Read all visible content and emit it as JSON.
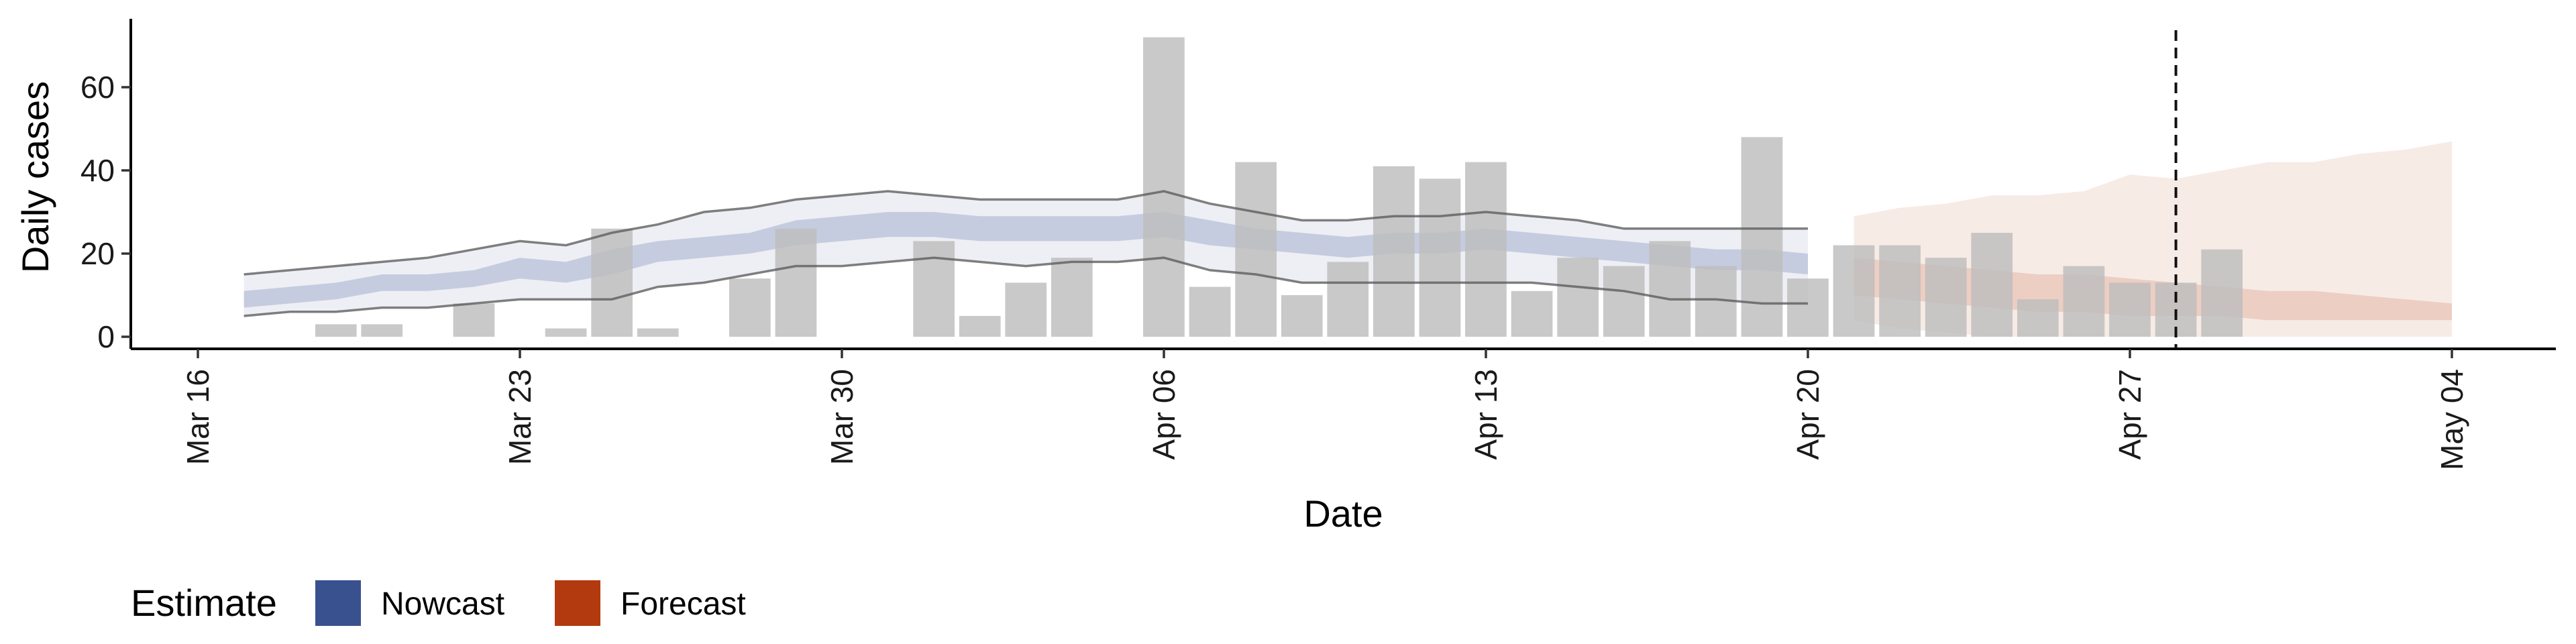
{
  "chart_data": {
    "type": "bar",
    "xlabel": "Date",
    "ylabel": "Daily cases",
    "ylim": [
      -3,
      75
    ],
    "xlim": [
      "2020-03-16",
      "2020-05-04"
    ],
    "y_ticks": [
      0,
      20,
      40,
      60
    ],
    "x_ticks": [
      "2020-03-16",
      "2020-03-23",
      "2020-03-30",
      "2020-04-06",
      "2020-04-13",
      "2020-04-20",
      "2020-04-27",
      "2020-05-04"
    ],
    "x_tick_labels": [
      "Mar 16",
      "Mar 23",
      "Mar 30",
      "Apr 06",
      "Apr 13",
      "Apr 20",
      "Apr 27",
      "May 04"
    ],
    "grid": false,
    "reference_line_date": "2020-04-28",
    "bar_color": "#bdbdbd",
    "bars": {
      "dates": [
        "2020-03-19",
        "2020-03-20",
        "2020-03-22",
        "2020-03-24",
        "2020-03-25",
        "2020-03-26",
        "2020-03-28",
        "2020-03-29",
        "2020-04-01",
        "2020-04-02",
        "2020-04-03",
        "2020-04-04",
        "2020-04-06",
        "2020-04-07",
        "2020-04-08",
        "2020-04-09",
        "2020-04-10",
        "2020-04-11",
        "2020-04-12",
        "2020-04-13",
        "2020-04-14",
        "2020-04-15",
        "2020-04-16",
        "2020-04-17",
        "2020-04-18",
        "2020-04-19",
        "2020-04-20",
        "2020-04-21",
        "2020-04-22",
        "2020-04-23",
        "2020-04-24",
        "2020-04-25",
        "2020-04-26",
        "2020-04-27",
        "2020-04-28",
        "2020-04-29"
      ],
      "values": [
        3,
        3,
        8,
        2,
        26,
        2,
        14,
        26,
        23,
        5,
        13,
        19,
        72,
        12,
        42,
        10,
        18,
        41,
        38,
        42,
        11,
        19,
        17,
        23,
        17,
        48,
        14,
        22,
        22,
        19,
        25,
        9,
        17,
        13,
        13,
        21
      ]
    },
    "nowcast": {
      "name": "Nowcast",
      "color": "#3a5190",
      "dates": [
        "2020-03-17",
        "2020-03-18",
        "2020-03-19",
        "2020-03-20",
        "2020-03-21",
        "2020-03-22",
        "2020-03-23",
        "2020-03-24",
        "2020-03-25",
        "2020-03-26",
        "2020-03-27",
        "2020-03-28",
        "2020-03-29",
        "2020-03-30",
        "2020-03-31",
        "2020-04-01",
        "2020-04-02",
        "2020-04-03",
        "2020-04-04",
        "2020-04-05",
        "2020-04-06",
        "2020-04-07",
        "2020-04-08",
        "2020-04-09",
        "2020-04-10",
        "2020-04-11",
        "2020-04-12",
        "2020-04-13",
        "2020-04-14",
        "2020-04-15",
        "2020-04-16",
        "2020-04-17",
        "2020-04-18",
        "2020-04-19",
        "2020-04-20"
      ],
      "outer_lower": [
        5,
        6,
        6,
        7,
        7,
        8,
        9,
        9,
        9,
        12,
        13,
        15,
        17,
        17,
        18,
        19,
        18,
        17,
        18,
        18,
        19,
        16,
        15,
        13,
        13,
        13,
        13,
        13,
        13,
        12,
        11,
        9,
        9,
        8,
        8
      ],
      "outer_upper": [
        15,
        16,
        17,
        18,
        19,
        21,
        23,
        22,
        25,
        27,
        30,
        31,
        33,
        34,
        35,
        34,
        33,
        33,
        33,
        33,
        35,
        32,
        30,
        28,
        28,
        29,
        29,
        30,
        29,
        28,
        26,
        26,
        26,
        26,
        26
      ],
      "inner_lower": [
        7,
        8,
        9,
        11,
        11,
        12,
        14,
        13,
        15,
        18,
        19,
        20,
        22,
        23,
        24,
        24,
        23,
        23,
        23,
        23,
        24,
        22,
        21,
        20,
        19,
        20,
        20,
        21,
        20,
        19,
        18,
        17,
        16,
        16,
        15
      ],
      "inner_upper": [
        11,
        12,
        13,
        15,
        15,
        16,
        19,
        18,
        21,
        23,
        24,
        25,
        28,
        29,
        30,
        30,
        29,
        29,
        29,
        29,
        30,
        28,
        26,
        25,
        24,
        25,
        25,
        26,
        25,
        24,
        23,
        22,
        21,
        21,
        20
      ]
    },
    "forecast": {
      "name": "Forecast",
      "color": "#b33a0e",
      "dates": [
        "2020-04-21",
        "2020-04-22",
        "2020-04-23",
        "2020-04-24",
        "2020-04-25",
        "2020-04-26",
        "2020-04-27",
        "2020-04-28",
        "2020-04-29",
        "2020-04-30",
        "2020-05-01",
        "2020-05-02",
        "2020-05-03",
        "2020-05-04"
      ],
      "outer_lower": [
        4,
        2,
        1,
        0,
        0,
        0,
        0,
        0,
        0,
        0,
        0,
        0,
        0,
        0
      ],
      "outer_upper": [
        29,
        31,
        32,
        34,
        34,
        35,
        39,
        38,
        40,
        42,
        42,
        44,
        45,
        47
      ],
      "inner_lower": [
        10,
        9,
        8,
        7,
        6,
        6,
        5,
        5,
        5,
        4,
        4,
        4,
        4,
        4
      ],
      "inner_upper": [
        19,
        18,
        17,
        16,
        15,
        15,
        14,
        13,
        12,
        11,
        11,
        10,
        9,
        8
      ]
    },
    "legend": {
      "title": "Estimate",
      "position": "bottom-left",
      "entries": [
        {
          "name": "Nowcast",
          "color": "#3a5190"
        },
        {
          "name": "Forecast",
          "color": "#b33a0e"
        }
      ]
    }
  }
}
